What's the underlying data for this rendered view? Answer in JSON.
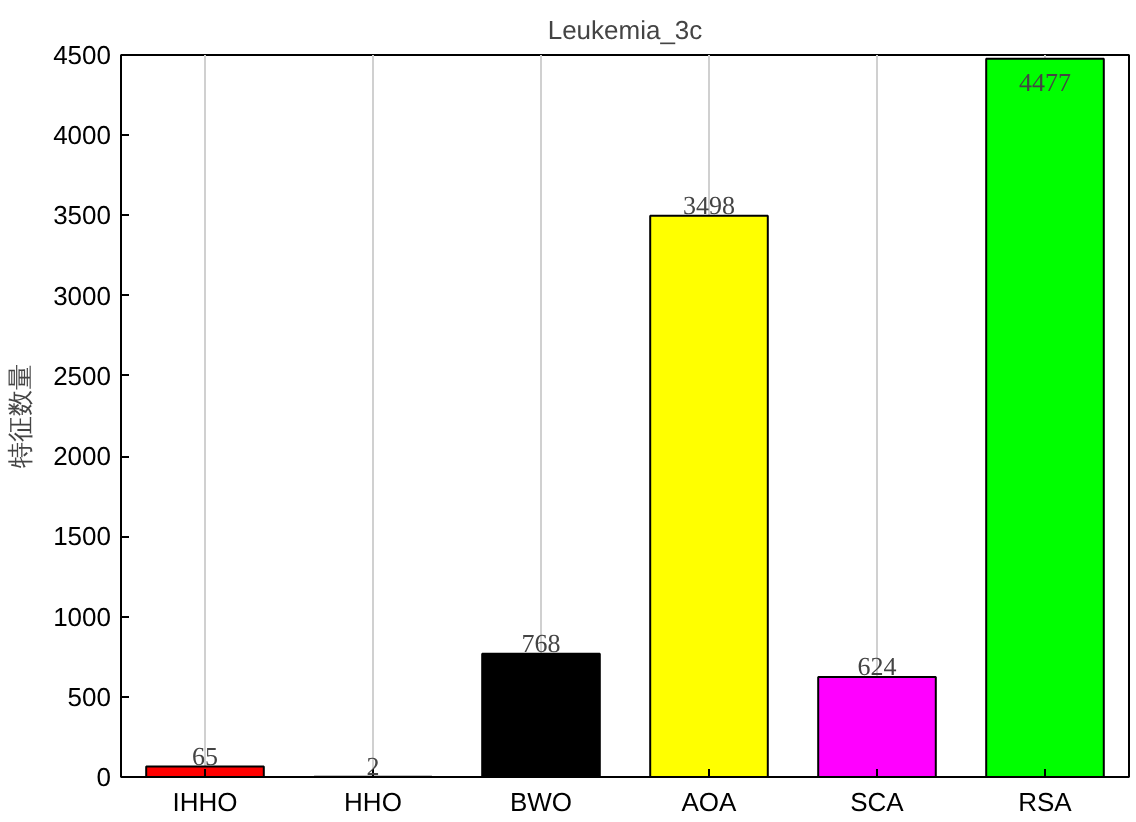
{
  "chart_data": {
    "type": "bar",
    "title": "Leukemia_3c",
    "ylabel": "特征数量",
    "categories": [
      "IHHO",
      "HHO",
      "BWO",
      "AOA",
      "SCA",
      "RSA"
    ],
    "values": [
      65,
      2,
      768,
      3498,
      624,
      4477
    ],
    "colors": [
      "#ff0000",
      "#0000ff",
      "#000000",
      "#ffff00",
      "#ff00ff",
      "#00ff00"
    ],
    "ylim": [
      0,
      4500
    ],
    "yticks": [
      0,
      500,
      1000,
      1500,
      2000,
      2500,
      3000,
      3500,
      4000,
      4500
    ],
    "grid": "x",
    "data_labels": true
  }
}
